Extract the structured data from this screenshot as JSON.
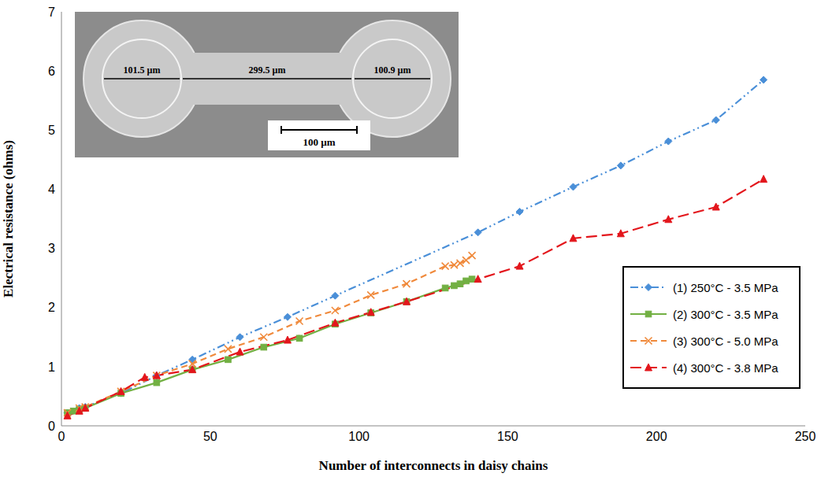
{
  "chart_data": {
    "type": "line",
    "xlabel": "Number of interconnects in daisy chains",
    "ylabel": "Electrical resistance (ohms)",
    "annotations": [
      "101.5 µm",
      "299.5 µm",
      "100.9 µm",
      "100 µm"
    ],
    "xlim": [
      0,
      250
    ],
    "xticks": [
      0,
      50,
      100,
      150,
      200,
      250
    ],
    "ylim": [
      0,
      7
    ],
    "yticks": [
      0,
      1,
      2,
      3,
      4,
      5,
      6,
      7
    ],
    "grid": false,
    "legend": "lower right",
    "series": [
      {
        "name": "(1) 250°C - 3.5 MPa",
        "color": "#4a8fd8",
        "marker": "diamond",
        "line_style": "dashdotdot",
        "x": [
          2,
          6,
          8,
          20,
          32,
          44,
          60,
          76,
          92,
          140,
          154,
          172,
          188,
          204,
          220,
          236
        ],
        "values": [
          0.22,
          0.3,
          0.32,
          0.55,
          0.85,
          1.12,
          1.5,
          1.84,
          2.2,
          3.27,
          3.62,
          4.04,
          4.4,
          4.81,
          5.17,
          5.85
        ]
      },
      {
        "name": "(2) 300°C - 3.5 MPa",
        "color": "#72b043",
        "marker": "square",
        "line_style": "solid",
        "x": [
          2,
          4,
          6,
          8,
          20,
          32,
          44,
          56,
          68,
          80,
          92,
          104,
          116,
          129,
          132,
          134,
          136,
          138
        ],
        "values": [
          0.22,
          0.25,
          0.28,
          0.3,
          0.55,
          0.73,
          0.95,
          1.12,
          1.33,
          1.48,
          1.72,
          1.91,
          2.1,
          2.33,
          2.37,
          2.4,
          2.45,
          2.48
        ]
      },
      {
        "name": "(3) 300°C - 5.0 MPa",
        "color": "#f08a3c",
        "marker": "x",
        "line_style": "dashed",
        "x": [
          2,
          6,
          8,
          20,
          32,
          44,
          56,
          68,
          80,
          92,
          104,
          116,
          129,
          132,
          134,
          136,
          138
        ],
        "values": [
          0.22,
          0.3,
          0.32,
          0.58,
          0.85,
          1.05,
          1.3,
          1.5,
          1.77,
          1.95,
          2.21,
          2.4,
          2.7,
          2.72,
          2.75,
          2.8,
          2.88
        ]
      },
      {
        "name": "(4) 300°C - 3.8 MPa",
        "color": "#e3161c",
        "marker": "triangle",
        "line_style": "longdash",
        "x": [
          2,
          6,
          8,
          20,
          28,
          32,
          44,
          60,
          76,
          92,
          104,
          116,
          140,
          154,
          172,
          188,
          204,
          220,
          236
        ],
        "values": [
          0.17,
          0.25,
          0.3,
          0.58,
          0.82,
          0.85,
          0.95,
          1.25,
          1.45,
          1.74,
          1.92,
          2.1,
          2.48,
          2.7,
          3.17,
          3.25,
          3.49,
          3.7,
          4.17
        ]
      }
    ]
  }
}
